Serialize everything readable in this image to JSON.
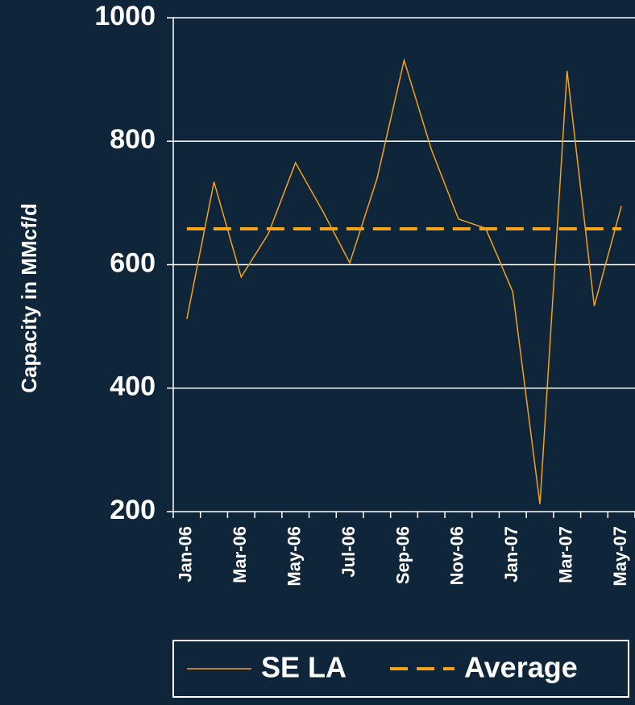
{
  "chart_data": {
    "type": "line",
    "y_label": "Capacity in MMcf/d",
    "categories": [
      "Jan-06",
      null,
      "Mar-06",
      null,
      "May-06",
      null,
      "Jul-06",
      null,
      "Sep-06",
      null,
      "Nov-06",
      null,
      "Jan-07",
      null,
      "Mar-07",
      null,
      "May-07"
    ],
    "series": [
      {
        "name": "SE LA",
        "color": "#f5a21c",
        "dash": false,
        "values": [
          512,
          734,
          580,
          650,
          765,
          687,
          603,
          739,
          931,
          787,
          674,
          659,
          556,
          212,
          914,
          533,
          695
        ]
      },
      {
        "name": "Average",
        "color": "#f5a21c",
        "dash": true,
        "values": [
          658,
          658,
          658,
          658,
          658,
          658,
          658,
          658,
          658,
          658,
          658,
          658,
          658,
          658,
          658,
          658,
          658
        ]
      }
    ],
    "ylim": [
      200,
      1000
    ],
    "yticks": [
      200,
      400,
      600,
      800,
      1000
    ],
    "grid": true
  }
}
